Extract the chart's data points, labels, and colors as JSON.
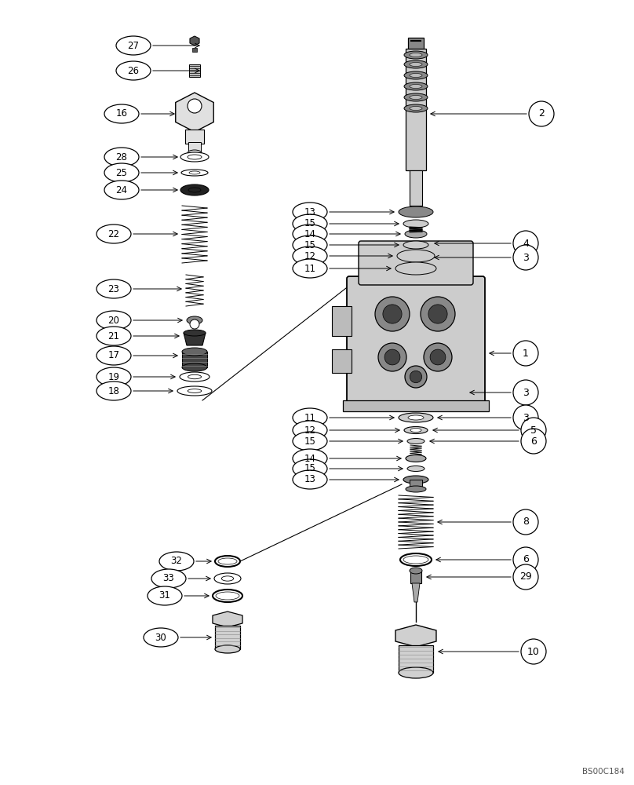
{
  "bg_color": "#ffffff",
  "lc": "#000000",
  "fig_w": 8.08,
  "fig_h": 10.0,
  "watermark": "BS00C184"
}
